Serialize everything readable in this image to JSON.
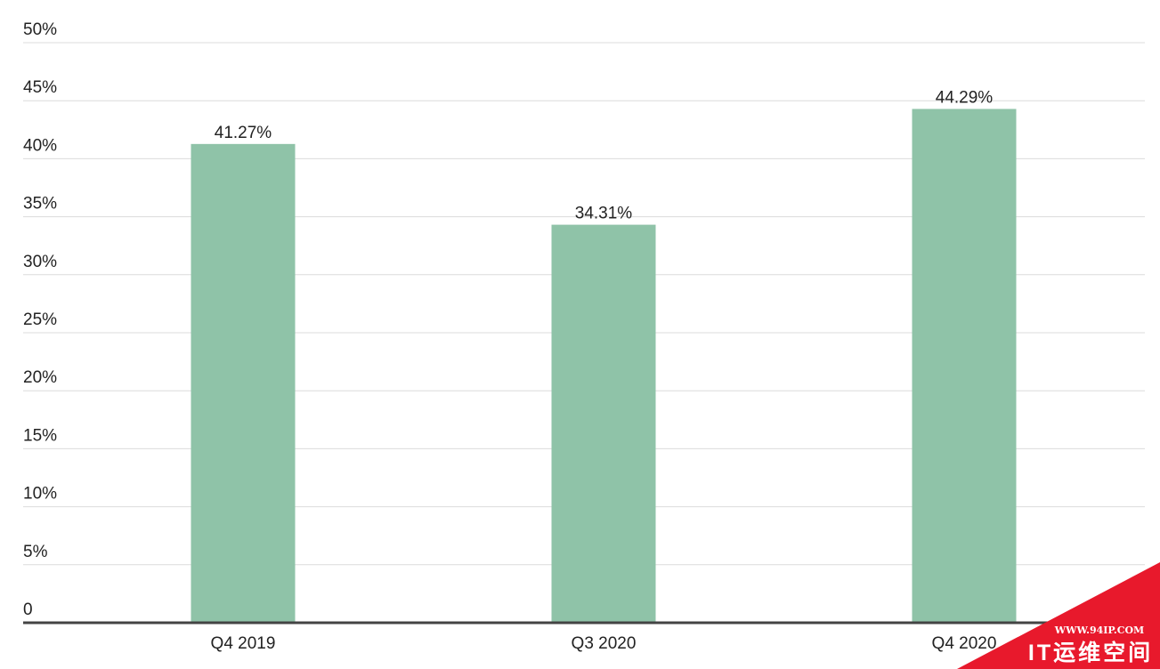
{
  "chart_data": {
    "type": "bar",
    "categories": [
      "Q4 2019",
      "Q3 2020",
      "Q4 2020"
    ],
    "values": [
      41.27,
      34.31,
      44.29
    ],
    "value_labels": [
      "41.27%",
      "34.31%",
      "44.29%"
    ],
    "color": "#8fc3a8",
    "ylim": [
      0,
      50
    ],
    "yticks": [
      0,
      {
        "value": 5,
        "label": "5%"
      },
      {
        "value": 10,
        "label": "10%"
      },
      {
        "value": 15,
        "label": "15%"
      },
      {
        "value": 20,
        "label": "20%"
      },
      {
        "value": 25,
        "label": "25%"
      },
      {
        "value": 30,
        "label": "30%"
      },
      {
        "value": 35,
        "label": "35%"
      },
      {
        "value": 40,
        "label": "40%"
      },
      {
        "value": 45,
        "label": "45%"
      },
      {
        "value": 50,
        "label": "50%"
      }
    ],
    "grid": true
  },
  "watermark": {
    "url": "WWW.94IP.COM",
    "text": "IT运维空间"
  }
}
